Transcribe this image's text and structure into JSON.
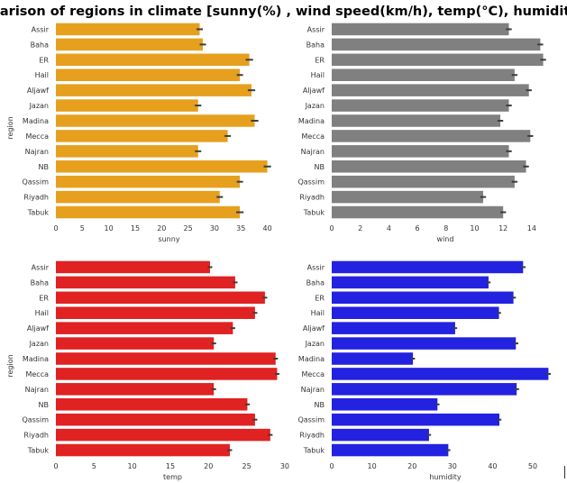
{
  "figure": {
    "title": "Comparison of regions in climate [sunny(%) , wind speed(km/h), temp(°C), humidity(%)]"
  },
  "chart_data": [
    {
      "type": "bar",
      "orientation": "horizontal",
      "categories": [
        "Assir",
        "Baha",
        "ER",
        "Hail",
        "Aljawf",
        "Jazan",
        "Madina",
        "Mecca",
        "Najran",
        "NB",
        "Qassim",
        "Riyadh",
        "Tabuk"
      ],
      "values": [
        27.2,
        27.8,
        36.6,
        34.8,
        37.0,
        26.9,
        37.6,
        32.5,
        26.9,
        40.0,
        34.8,
        31.0,
        34.8
      ],
      "error": [
        0.6,
        0.6,
        0.7,
        0.6,
        0.7,
        0.6,
        0.7,
        0.6,
        0.6,
        0.7,
        0.6,
        0.6,
        0.7
      ],
      "xlabel": "sunny",
      "ylabel": "region",
      "xlim": [
        0,
        42.8
      ],
      "xticks": [
        0,
        5,
        10,
        15,
        20,
        25,
        30,
        35,
        40
      ],
      "color": "#e6a01e",
      "grid": false
    },
    {
      "type": "bar",
      "orientation": "horizontal",
      "categories": [
        "Assir",
        "Baha",
        "ER",
        "Hail",
        "Aljawf",
        "Jazan",
        "Madina",
        "Mecca",
        "Najran",
        "NB",
        "Qassim",
        "Riyadh",
        "Tabuk"
      ],
      "values": [
        12.4,
        14.6,
        14.8,
        12.8,
        13.8,
        12.4,
        11.8,
        13.9,
        12.4,
        13.6,
        12.8,
        10.6,
        12.0
      ],
      "error": [
        0.2,
        0.2,
        0.2,
        0.2,
        0.2,
        0.2,
        0.2,
        0.2,
        0.2,
        0.2,
        0.2,
        0.2,
        0.2
      ],
      "xlabel": "wind",
      "ylabel": "",
      "xlim": [
        0,
        15.9
      ],
      "xticks": [
        0,
        2,
        4,
        6,
        8,
        10,
        12,
        14
      ],
      "color": "#808080",
      "grid": false
    },
    {
      "type": "bar",
      "orientation": "horizontal",
      "categories": [
        "Assir",
        "Baha",
        "ER",
        "Hail",
        "Aljawf",
        "Jazan",
        "Madina",
        "Mecca",
        "Najran",
        "NB",
        "Qassim",
        "Riyadh",
        "Tabuk"
      ],
      "values": [
        20.2,
        23.5,
        27.4,
        26.1,
        23.2,
        20.7,
        28.8,
        29.0,
        20.7,
        25.1,
        26.1,
        28.1,
        22.8
      ],
      "error": [
        0.3,
        0.3,
        0.3,
        0.3,
        0.3,
        0.3,
        0.3,
        0.3,
        0.3,
        0.3,
        0.3,
        0.3,
        0.3
      ],
      "xlabel": "temp",
      "ylabel": "region",
      "xlim": [
        0,
        30.6
      ],
      "xticks": [
        0,
        5,
        10,
        15,
        20,
        25,
        30
      ],
      "color": "#e02222",
      "grid": false
    },
    {
      "type": "bar",
      "orientation": "horizontal",
      "categories": [
        "Assir",
        "Baha",
        "ER",
        "Hail",
        "Aljawf",
        "Jazan",
        "Madina",
        "Mecca",
        "Najran",
        "NB",
        "Qassim",
        "Riyadh",
        "Tabuk"
      ],
      "values": [
        47.6,
        39.0,
        45.2,
        41.6,
        30.7,
        45.8,
        20.2,
        53.9,
        46.0,
        26.3,
        41.7,
        24.2,
        29.0
      ],
      "error": [
        0.6,
        0.5,
        0.6,
        0.5,
        0.5,
        0.6,
        0.5,
        0.6,
        0.6,
        0.5,
        0.5,
        0.5,
        0.5
      ],
      "xlabel": "humidity",
      "ylabel": "",
      "xlim": [
        0,
        56.5
      ],
      "xticks": [
        0,
        10,
        20,
        30,
        40,
        50
      ],
      "color": "#2222e0",
      "grid": false
    }
  ]
}
